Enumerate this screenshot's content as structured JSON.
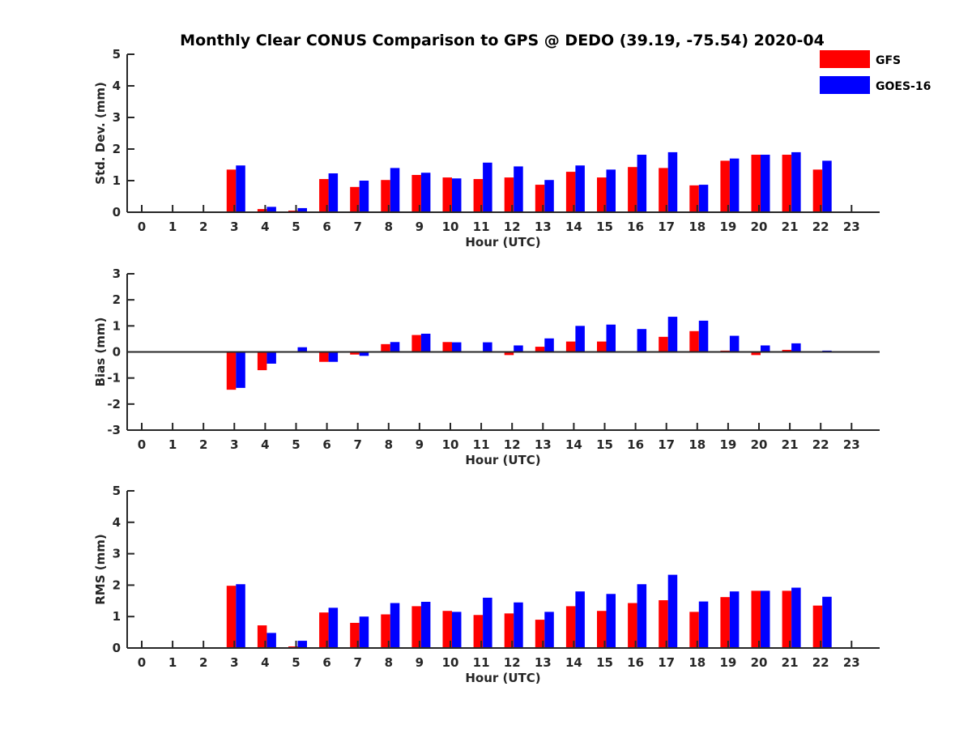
{
  "title": "Monthly Clear CONUS Comparison to GPS @ DEDO (39.19, -75.54) 2020-04",
  "legend": {
    "placement": "top-right",
    "entries": [
      {
        "name": "GFS",
        "color": "#ff0000"
      },
      {
        "name": "GOES-16",
        "color": "#0000ff"
      }
    ]
  },
  "chart_data": [
    {
      "type": "bar",
      "xlabel": "Hour (UTC)",
      "ylabel": "Std. Dev. (mm)",
      "ylim": [
        0,
        5
      ],
      "yticks": [
        0,
        1,
        2,
        3,
        4,
        5
      ],
      "categories": [
        0,
        1,
        2,
        3,
        4,
        5,
        6,
        7,
        8,
        9,
        10,
        11,
        12,
        13,
        14,
        15,
        16,
        17,
        18,
        19,
        20,
        21,
        22,
        23
      ],
      "series": [
        {
          "name": "GFS",
          "color": "#ff0000",
          "values": [
            null,
            null,
            null,
            1.35,
            0.1,
            0.05,
            1.05,
            0.8,
            1.02,
            1.18,
            1.1,
            1.05,
            1.1,
            0.87,
            1.28,
            1.1,
            1.43,
            1.4,
            0.85,
            1.63,
            1.82,
            1.82,
            1.35,
            null
          ]
        },
        {
          "name": "GOES-16",
          "color": "#0000ff",
          "values": [
            null,
            null,
            null,
            1.48,
            0.17,
            0.13,
            1.23,
            1.0,
            1.4,
            1.25,
            1.07,
            1.57,
            1.45,
            1.02,
            1.48,
            1.35,
            1.82,
            1.9,
            0.87,
            1.7,
            1.82,
            1.9,
            1.63,
            null
          ]
        }
      ]
    },
    {
      "type": "bar",
      "xlabel": "Hour (UTC)",
      "ylabel": "Bias (mm)",
      "ylim": [
        -3,
        3
      ],
      "yticks": [
        -3,
        -2,
        -1,
        0,
        1,
        2,
        3
      ],
      "categories": [
        0,
        1,
        2,
        3,
        4,
        5,
        6,
        7,
        8,
        9,
        10,
        11,
        12,
        13,
        14,
        15,
        16,
        17,
        18,
        19,
        20,
        21,
        22,
        23
      ],
      "series": [
        {
          "name": "GFS",
          "color": "#ff0000",
          "values": [
            null,
            null,
            null,
            -1.45,
            -0.7,
            0.0,
            -0.38,
            -0.1,
            0.3,
            0.65,
            0.38,
            0.0,
            -0.12,
            0.2,
            0.4,
            0.4,
            0.03,
            0.58,
            0.8,
            0.05,
            -0.12,
            0.08,
            0.0,
            null
          ]
        },
        {
          "name": "GOES-16",
          "color": "#0000ff",
          "values": [
            null,
            null,
            null,
            -1.38,
            -0.45,
            0.18,
            -0.38,
            -0.15,
            0.38,
            0.7,
            0.37,
            0.37,
            0.25,
            0.52,
            1.0,
            1.05,
            0.88,
            1.35,
            1.2,
            0.62,
            0.25,
            0.33,
            0.05,
            null
          ]
        }
      ]
    },
    {
      "type": "bar",
      "xlabel": "Hour (UTC)",
      "ylabel": "RMS (mm)",
      "ylim": [
        0,
        5
      ],
      "yticks": [
        0,
        1,
        2,
        3,
        4,
        5
      ],
      "categories": [
        0,
        1,
        2,
        3,
        4,
        5,
        6,
        7,
        8,
        9,
        10,
        11,
        12,
        13,
        14,
        15,
        16,
        17,
        18,
        19,
        20,
        21,
        22,
        23
      ],
      "series": [
        {
          "name": "GFS",
          "color": "#ff0000",
          "values": [
            null,
            null,
            null,
            1.98,
            0.72,
            0.05,
            1.13,
            0.8,
            1.07,
            1.33,
            1.18,
            1.05,
            1.1,
            0.9,
            1.33,
            1.18,
            1.43,
            1.52,
            1.15,
            1.62,
            1.82,
            1.82,
            1.35,
            null
          ]
        },
        {
          "name": "GOES-16",
          "color": "#0000ff",
          "values": [
            null,
            null,
            null,
            2.03,
            0.48,
            0.23,
            1.28,
            1.0,
            1.43,
            1.47,
            1.15,
            1.6,
            1.45,
            1.15,
            1.8,
            1.72,
            2.03,
            2.33,
            1.48,
            1.8,
            1.82,
            1.92,
            1.63,
            null
          ]
        }
      ]
    }
  ]
}
